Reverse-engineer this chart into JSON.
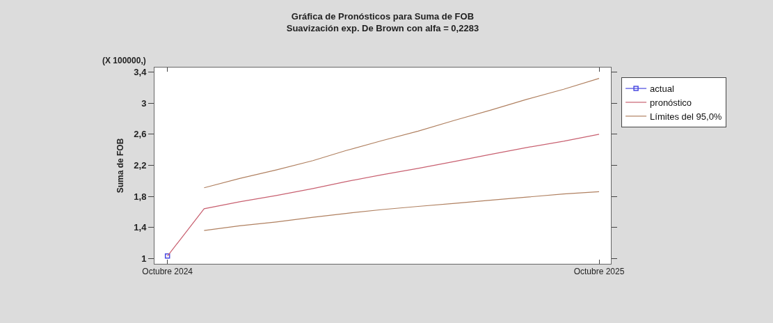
{
  "chart_data": {
    "type": "line",
    "title": "Gráfica de Pronósticos para Suma de FOB",
    "subtitle": "Suavización exp. De Brown con alfa = 0,2283",
    "ylabel": "Suma de FOB",
    "annotations": [
      "(X 100000,)"
    ],
    "xlim": [
      "2024-09-20",
      "2025-10-11"
    ],
    "xticks": [
      {
        "value": "2024-10",
        "label": "Octubre 2024"
      },
      {
        "value": "2025-10",
        "label": "Octubre 2025"
      }
    ],
    "ylim": [
      0.93,
      3.46
    ],
    "yticks": [
      1,
      {
        "value": 1.4,
        "label": "1,4"
      },
      {
        "value": 1.8,
        "label": "1,8"
      },
      {
        "value": 2.2,
        "label": "2,2"
      },
      {
        "value": 2.6,
        "label": "2,6"
      },
      3,
      {
        "value": 3.4,
        "label": "3,4"
      }
    ],
    "grid": false,
    "legend": "right",
    "line_style": "solid",
    "series": [
      {
        "name": "actual",
        "color": "#4a4ae0",
        "marker": "square",
        "x": [
          "2024-10"
        ],
        "values": [
          1.03
        ]
      },
      {
        "name": "pronóstico",
        "color": "#c86070",
        "marker": "none",
        "x": [
          "2024-10",
          "2024-11",
          "2024-12",
          "2025-01",
          "2025-02",
          "2025-03",
          "2025-04",
          "2025-05",
          "2025-06",
          "2025-07",
          "2025-08",
          "2025-09",
          "2025-10"
        ],
        "values": [
          1.03,
          1.64,
          1.73,
          1.81,
          1.9,
          1.99,
          2.08,
          2.16,
          2.25,
          2.34,
          2.43,
          2.51,
          2.6
        ]
      },
      {
        "name": "Límites del 95,0%",
        "color": "#b08060",
        "marker": "none",
        "x": [
          "2024-11",
          "2024-12",
          "2025-01",
          "2025-02",
          "2025-03",
          "2025-04",
          "2025-05",
          "2025-06",
          "2025-07",
          "2025-08",
          "2025-09",
          "2025-10"
        ],
        "values": [
          1.91,
          2.03,
          2.14,
          2.26,
          2.39,
          2.52,
          2.64,
          2.78,
          2.91,
          3.05,
          3.18,
          3.32
        ]
      },
      {
        "color": "#b08060",
        "marker": "none",
        "x": [
          "2024-11",
          "2024-12",
          "2025-01",
          "2025-02",
          "2025-03",
          "2025-04",
          "2025-05",
          "2025-06",
          "2025-07",
          "2025-08",
          "2025-09",
          "2025-10"
        ],
        "values": [
          1.36,
          1.42,
          1.47,
          1.53,
          1.58,
          1.63,
          1.67,
          1.71,
          1.75,
          1.79,
          1.83,
          1.86
        ]
      }
    ]
  }
}
